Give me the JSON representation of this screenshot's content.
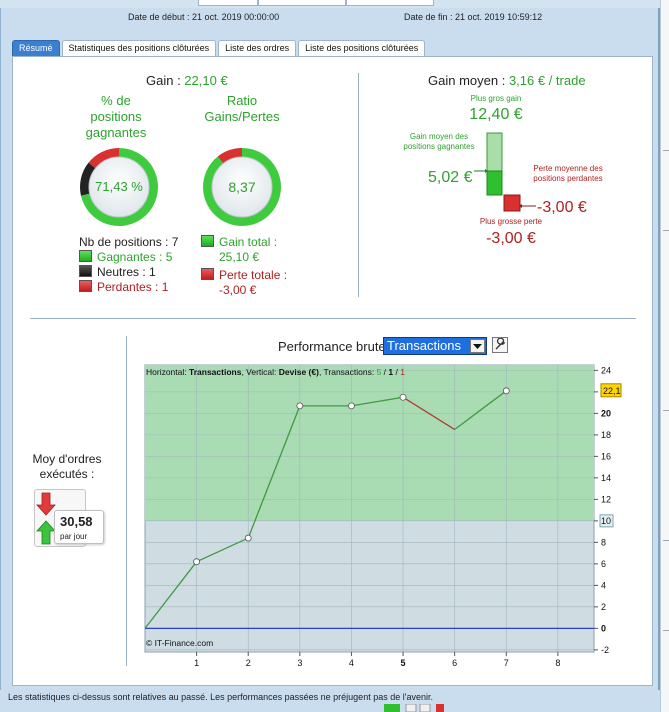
{
  "header": {
    "start_label": "Date de début : 21 oct. 2019 00:00:00",
    "end_label": "Date de fin : 21 oct. 2019 10:59:12"
  },
  "tabs": [
    {
      "label": "Résumé",
      "active": true
    },
    {
      "label": "Statistiques des positions clôturées",
      "active": false
    },
    {
      "label": "Liste des ordres",
      "active": false
    },
    {
      "label": "Liste des positions clôturées",
      "active": false
    }
  ],
  "summary": {
    "gain_label": "Gain : ",
    "gain_value": "22,10 €",
    "win_pct_title": "% de positions gagnantes",
    "win_pct_value": "71,43 %",
    "ratio_title": "Ratio Gains/Pertes",
    "ratio_value": "8,37",
    "nb_positions": "Nb de positions : 7",
    "gagnantes": "Gagnantes : 5",
    "neutres": "Neutres : 1",
    "perdantes": "Perdantes : 1",
    "gain_total": "Gain total : 25,10 €",
    "perte_totale": "Perte totale : -3,00 €",
    "win_ring": {
      "green": 0.7143,
      "black": 0.1429,
      "red": 0.1429
    },
    "ratio_ring": {
      "green": 0.893,
      "red": 0.107
    }
  },
  "average": {
    "title": "Gain moyen : ",
    "value": "3,16 € / trade",
    "plus_gros_gain_label": "Plus gros gain",
    "plus_gros_gain": "12,40 €",
    "gain_moyen_label": "Gain moyen des positions gagnantes",
    "gain_moyen": "5,02 €",
    "perte_moyenne_label": "Perte moyenne des positions perdantes",
    "perte_moyenne": "-3,00 €",
    "plus_grosse_perte_label": "Plus grosse perte",
    "plus_grosse_perte": "-3,00 €"
  },
  "orders": {
    "title": "Moy d'ordres exécutés :",
    "value": "30,58",
    "unit": "par jour"
  },
  "performance": {
    "title": "Performance brute",
    "selector": "Transactions",
    "info_prefix": "Horizontal: ",
    "info_h": "Transactions",
    "info_mid": ", Vertical: ",
    "info_v": "Devise (€)",
    "info_tr": ", Transactions: ",
    "info_counts": [
      "5",
      "1",
      "1"
    ],
    "copyright": "© IT-Finance.com",
    "current_value": "22,1"
  },
  "chart_data": {
    "type": "line",
    "x": [
      0,
      1,
      2,
      3,
      4,
      5,
      6,
      7
    ],
    "y": [
      0,
      6.2,
      8.4,
      20.7,
      20.7,
      21.5,
      18.5,
      22.1
    ],
    "xticks": [
      "1",
      "2",
      "3",
      "4",
      "5",
      "6",
      "7",
      "8"
    ],
    "yticks": [
      "24",
      "22",
      "20",
      "18",
      "16",
      "14",
      "12",
      "10",
      "8",
      "6",
      "4",
      "2",
      "0",
      "-2"
    ],
    "xlim": [
      0,
      8.7
    ],
    "ylim": [
      -2.2,
      24.5
    ],
    "marked_y_tick": "10",
    "gain_zone_from": 10,
    "colors": {
      "up": "#3f9a3f",
      "down": "#b03030",
      "gain_zone": "#a9dcb3",
      "zero_line": "#2a3fd0"
    }
  },
  "footer": {
    "text": "Les statistiques ci-dessus sont relatives au passé. Les performances passées ne préjugent pas de l'avenir."
  }
}
